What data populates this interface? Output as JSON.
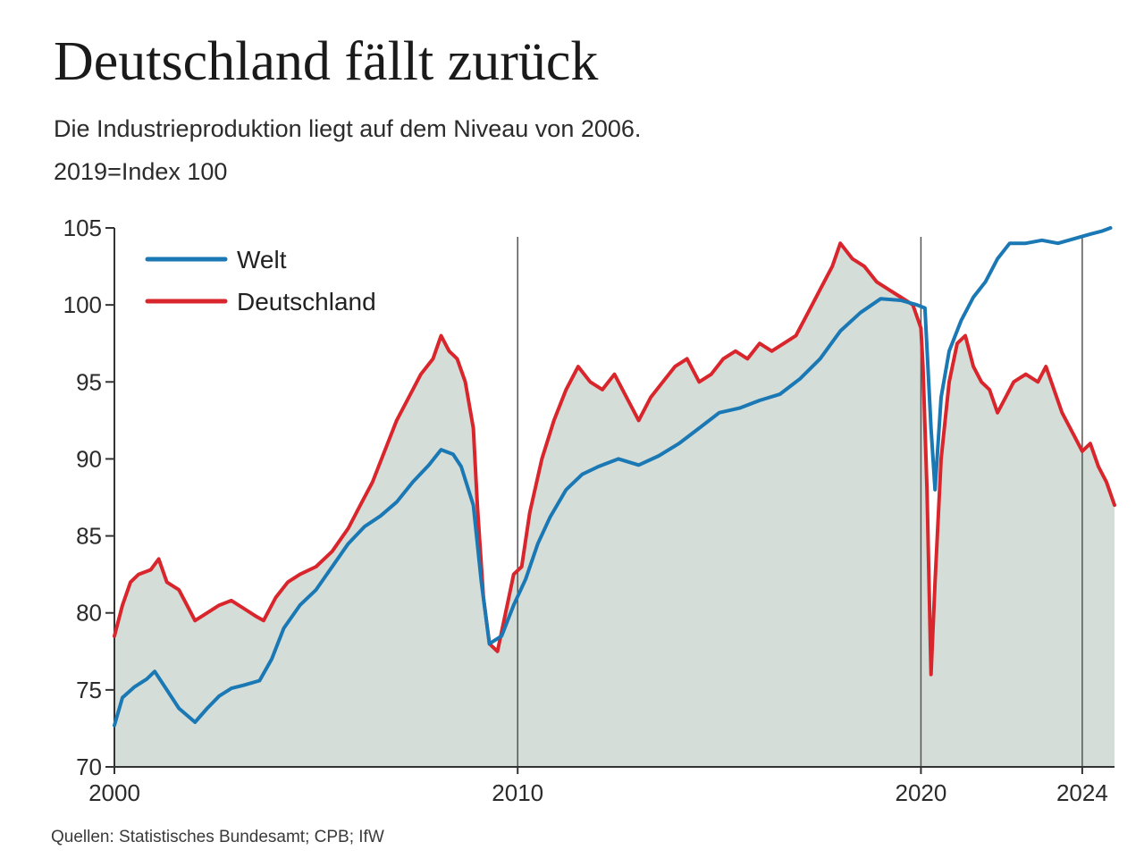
{
  "title": "Deutschland fällt zurück",
  "subtitle": "Die Industrieproduktion liegt auf dem Niveau von 2006.",
  "unit": "2019=Index 100",
  "source": "Quellen: Statistisches Bundesamt; CPB; IfW",
  "chart_data": {
    "type": "line",
    "title": "Deutschland fällt zurück",
    "subtitle": "Die Industrieproduktion liegt auf dem Niveau von 2006.",
    "ylabel": "2019=Index 100",
    "xlabel": "",
    "xlim": [
      2000,
      2024.8
    ],
    "ylim": [
      70,
      105
    ],
    "y_ticks": [
      70,
      75,
      80,
      85,
      90,
      95,
      100,
      105
    ],
    "x_ticks": [
      {
        "value": 2000,
        "label": "2000"
      },
      {
        "value": 2010,
        "label": "2010"
      },
      {
        "value": 2020,
        "label": "2020"
      },
      {
        "value": 2024,
        "label": "2024"
      }
    ],
    "reference_lines_x": [
      2010,
      2020,
      2024
    ],
    "legend_position": "top-left",
    "grid": false,
    "area_fill_under": "Deutschland",
    "series": [
      {
        "name": "Welt",
        "color": "#1a78b4",
        "x": [
          2000.0,
          2000.2,
          2000.5,
          2000.8,
          2001.0,
          2001.3,
          2001.6,
          2002.0,
          2002.3,
          2002.6,
          2002.9,
          2003.2,
          2003.6,
          2003.9,
          2004.2,
          2004.6,
          2005.0,
          2005.4,
          2005.8,
          2006.2,
          2006.6,
          2007.0,
          2007.4,
          2007.8,
          2008.1,
          2008.4,
          2008.6,
          2008.9,
          2009.1,
          2009.3,
          2009.6,
          2009.9,
          2010.2,
          2010.5,
          2010.8,
          2011.2,
          2011.6,
          2012.0,
          2012.5,
          2013.0,
          2013.5,
          2014.0,
          2014.5,
          2015.0,
          2015.5,
          2016.0,
          2016.5,
          2017.0,
          2017.5,
          2018.0,
          2018.5,
          2019.0,
          2019.5,
          2019.9,
          2020.1,
          2020.25,
          2020.35,
          2020.5,
          2020.7,
          2021.0,
          2021.3,
          2021.6,
          2021.9,
          2022.2,
          2022.6,
          2023.0,
          2023.4,
          2023.8,
          2024.2,
          2024.5,
          2024.7
        ],
        "values": [
          72.7,
          74.5,
          75.2,
          75.7,
          76.2,
          75.0,
          73.8,
          72.9,
          73.8,
          74.6,
          75.1,
          75.3,
          75.6,
          77.0,
          79.0,
          80.5,
          81.5,
          83.0,
          84.5,
          85.6,
          86.3,
          87.2,
          88.5,
          89.6,
          90.6,
          90.3,
          89.5,
          87.0,
          82.0,
          78.0,
          78.5,
          80.5,
          82.2,
          84.5,
          86.2,
          88.0,
          89.0,
          89.5,
          90.0,
          89.6,
          90.2,
          91.0,
          92.0,
          93.0,
          93.3,
          93.8,
          94.2,
          95.2,
          96.5,
          98.3,
          99.5,
          100.4,
          100.3,
          100.0,
          99.8,
          92.0,
          88.0,
          94.0,
          97.0,
          99.0,
          100.5,
          101.5,
          103.0,
          104.0,
          104.0,
          104.2,
          104.0,
          104.3,
          104.6,
          104.8,
          105.0
        ]
      },
      {
        "name": "Deutschland",
        "color": "#d9262c",
        "x": [
          2000.0,
          2000.2,
          2000.4,
          2000.6,
          2000.9,
          2001.1,
          2001.3,
          2001.6,
          2001.8,
          2002.0,
          2002.3,
          2002.6,
          2002.9,
          2003.2,
          2003.5,
          2003.7,
          2004.0,
          2004.3,
          2004.6,
          2005.0,
          2005.4,
          2005.8,
          2006.1,
          2006.4,
          2006.7,
          2007.0,
          2007.3,
          2007.6,
          2007.9,
          2008.1,
          2008.3,
          2008.5,
          2008.7,
          2008.9,
          2009.0,
          2009.15,
          2009.3,
          2009.5,
          2009.7,
          2009.9,
          2010.1,
          2010.3,
          2010.6,
          2010.9,
          2011.2,
          2011.5,
          2011.8,
          2012.1,
          2012.4,
          2012.7,
          2013.0,
          2013.3,
          2013.6,
          2013.9,
          2014.2,
          2014.5,
          2014.8,
          2015.1,
          2015.4,
          2015.7,
          2016.0,
          2016.3,
          2016.6,
          2016.9,
          2017.2,
          2017.5,
          2017.8,
          2018.0,
          2018.3,
          2018.6,
          2018.9,
          2019.2,
          2019.5,
          2019.8,
          2020.0,
          2020.05,
          2020.15,
          2020.25,
          2020.35,
          2020.5,
          2020.7,
          2020.9,
          2021.1,
          2021.3,
          2021.5,
          2021.7,
          2021.9,
          2022.1,
          2022.3,
          2022.6,
          2022.9,
          2023.1,
          2023.3,
          2023.5,
          2023.8,
          2024.0,
          2024.2,
          2024.4,
          2024.6,
          2024.8
        ],
        "values": [
          78.5,
          80.5,
          82.0,
          82.5,
          82.8,
          83.5,
          82.0,
          81.5,
          80.5,
          79.5,
          80.0,
          80.5,
          80.8,
          80.3,
          79.8,
          79.5,
          81.0,
          82.0,
          82.5,
          83.0,
          84.0,
          85.5,
          87.0,
          88.5,
          90.5,
          92.5,
          94.0,
          95.5,
          96.5,
          98.0,
          97.0,
          96.5,
          95.0,
          92.0,
          87.0,
          81.0,
          78.0,
          77.5,
          80.0,
          82.5,
          83.0,
          86.5,
          90.0,
          92.5,
          94.5,
          96.0,
          95.0,
          94.5,
          95.5,
          94.0,
          92.5,
          94.0,
          95.0,
          96.0,
          96.5,
          95.0,
          95.5,
          96.5,
          97.0,
          96.5,
          97.5,
          97.0,
          97.5,
          98.0,
          99.5,
          101.0,
          102.5,
          104.0,
          103.0,
          102.5,
          101.5,
          101.0,
          100.5,
          100.0,
          98.5,
          96.0,
          88.0,
          76.0,
          82.0,
          90.0,
          95.0,
          97.5,
          98.0,
          96.0,
          95.0,
          94.5,
          93.0,
          94.0,
          95.0,
          95.5,
          95.0,
          96.0,
          94.5,
          93.0,
          91.5,
          90.5,
          91.0,
          89.5,
          88.5,
          87.0
        ]
      }
    ]
  }
}
